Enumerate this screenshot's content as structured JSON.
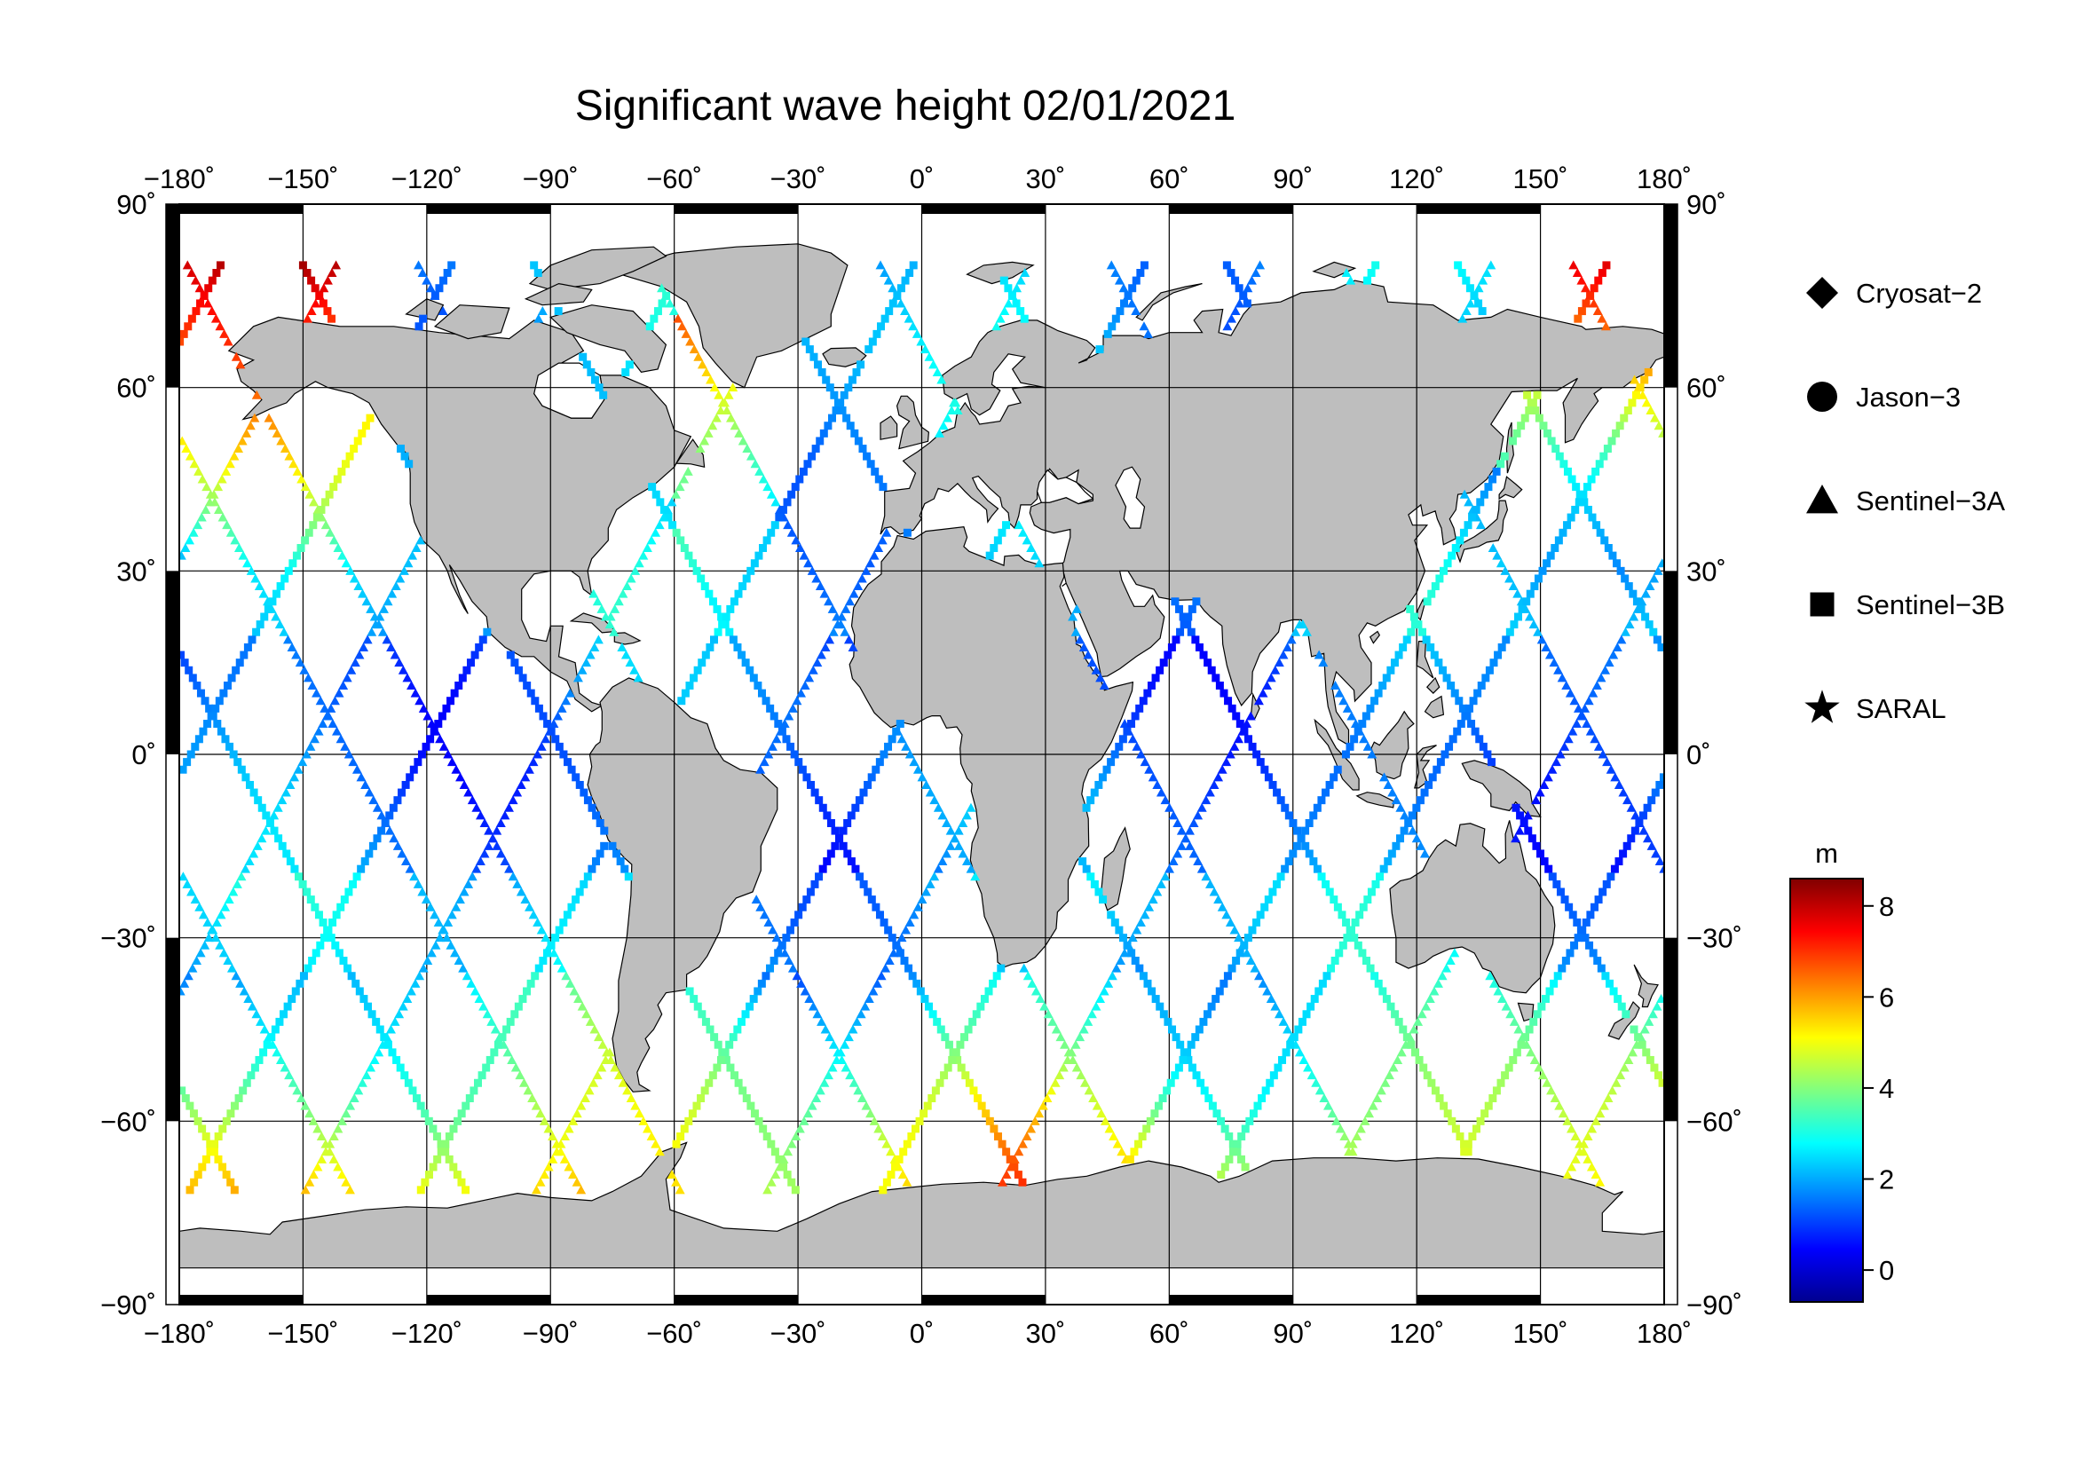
{
  "title": "Significant wave height 02/01/2021",
  "map": {
    "projection": "equirectangular",
    "lon_range": [
      -180,
      180
    ],
    "lat_range": [
      -90,
      90
    ],
    "graticule_step_deg": 30,
    "land_color": "#bebebe",
    "ocean_color": "#ffffff",
    "lon_tick_labels": [
      "−180˚",
      "−150˚",
      "−120˚",
      "−90˚",
      "−60˚",
      "−30˚",
      "0˚",
      "30˚",
      "60˚",
      "90˚",
      "120˚",
      "150˚",
      "180˚"
    ],
    "lat_tick_labels": [
      "90˚",
      "60˚",
      "30˚",
      "0˚",
      "−30˚",
      "−60˚",
      "−90˚"
    ]
  },
  "legend": {
    "satellites": [
      {
        "name": "Cryosat−2",
        "marker": "diamond"
      },
      {
        "name": "Jason−3",
        "marker": "circle"
      },
      {
        "name": "Sentinel−3A",
        "marker": "triangle"
      },
      {
        "name": "Sentinel−3B",
        "marker": "square"
      },
      {
        "name": "SARAL",
        "marker": "star"
      }
    ]
  },
  "colorbar": {
    "unit": "m",
    "range": [
      -0.7,
      8.6
    ],
    "ticks": [
      "0",
      "2",
      "4",
      "6",
      "8"
    ],
    "tick_values": [
      0,
      2,
      4,
      6,
      8
    ],
    "colors": [
      "#00008f",
      "#0000ff",
      "#0080ff",
      "#00ffff",
      "#80ff80",
      "#ffff00",
      "#ff8000",
      "#ff0000",
      "#800000"
    ]
  },
  "tracks": {
    "descending_start_lons": [
      -178,
      -150,
      -122,
      -94,
      -66,
      -38,
      -10,
      18,
      46,
      74,
      102,
      130,
      158
    ],
    "ascending_start_lons": [
      -170,
      -142,
      -114,
      -86,
      -58,
      -30,
      -2,
      26,
      54,
      82,
      110,
      138,
      166
    ],
    "track_lon_span_deg": 120,
    "lat_extent": [
      -72,
      80
    ]
  }
}
